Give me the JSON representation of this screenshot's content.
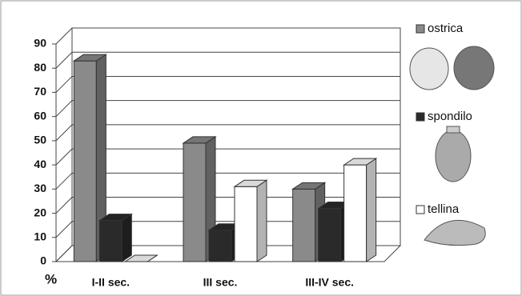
{
  "chart_data": {
    "type": "bar3d",
    "y_label": "%",
    "categories": [
      "I-II sec.",
      "III sec.",
      "III-IV sec."
    ],
    "series": [
      {
        "name": "ostrica",
        "color": "#8a8a8a",
        "values": [
          83,
          49,
          30
        ]
      },
      {
        "name": "spondilo",
        "color": "#2a2a2a",
        "values": [
          17,
          13,
          22
        ]
      },
      {
        "name": "tellina",
        "color": "#ffffff",
        "values": [
          0,
          31,
          40
        ]
      }
    ],
    "ylim": [
      0,
      90
    ],
    "yticks": [
      0,
      10,
      20,
      30,
      40,
      50,
      60,
      70,
      80,
      90
    ],
    "grid": true
  }
}
